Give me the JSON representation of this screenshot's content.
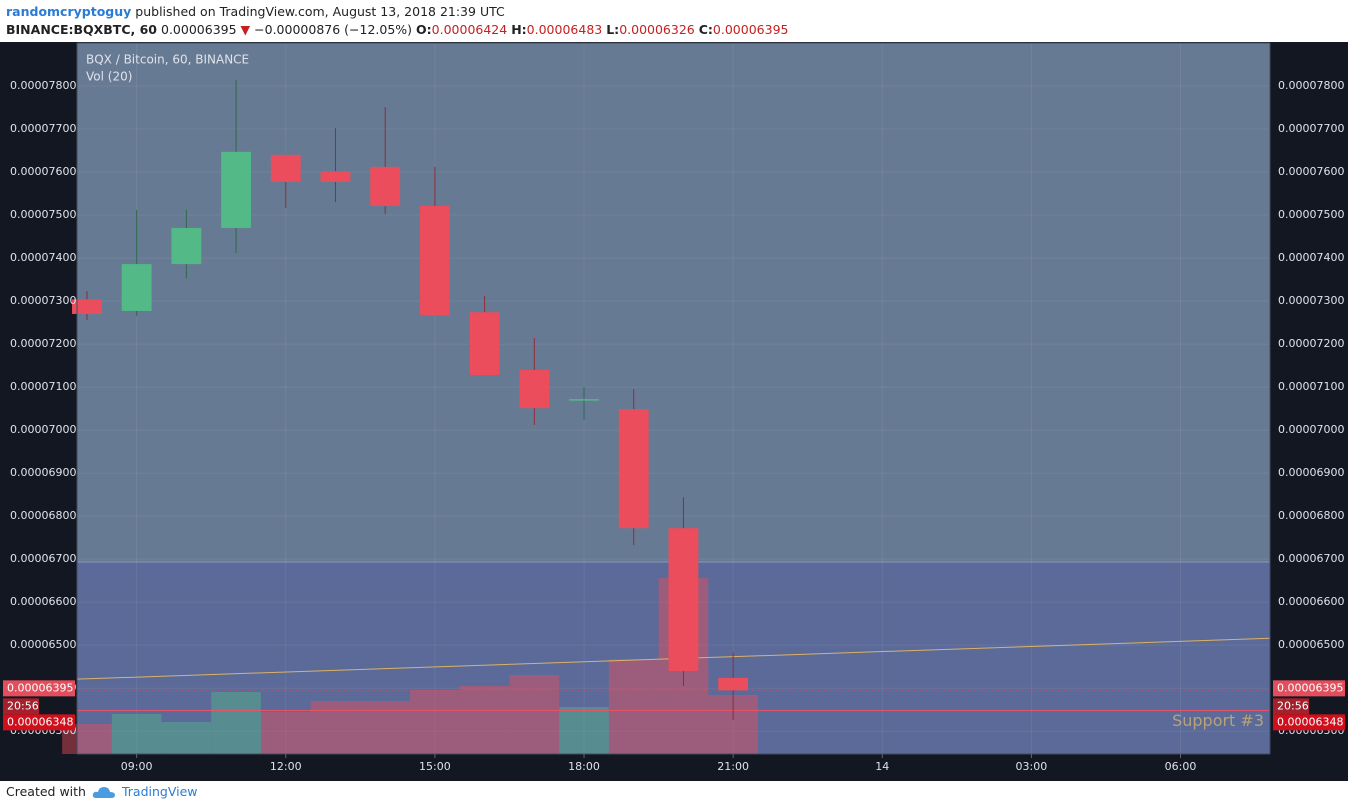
{
  "header": {
    "user": "randomcryptoguy",
    "published": "published on TradingView.com, August 13, 2018 21:39 UTC",
    "symbol": "BINANCE:BQXBTC, 60",
    "last": "0.00006395",
    "arrow": "▼",
    "change": "−0.00000876 (−12.05%)",
    "o_label": "O:",
    "o": "0.00006424",
    "h_label": "H:",
    "h": "0.00006483",
    "l_label": "L:",
    "l": "0.00006326",
    "c_label": "C:",
    "c": "0.00006395"
  },
  "footer": {
    "created": "Created with",
    "brand": "TradingView"
  },
  "chart_data": {
    "type": "candlestick",
    "title": "BQX / Bitcoin, 60, BINANCE",
    "volume_title": "Vol (20)",
    "x": [
      8,
      9,
      10,
      11,
      12,
      13,
      14,
      15,
      16,
      17,
      18,
      19,
      20,
      21
    ],
    "open": [
      7.304e-05,
      7.277e-05,
      7.386e-05,
      7.47e-05,
      7.64e-05,
      7.602e-05,
      7.612e-05,
      7.521e-05,
      7.274e-05,
      7.14e-05,
      7.072e-05,
      7.049e-05,
      6.772e-05,
      6.424e-05
    ],
    "high": [
      7.323e-05,
      7.512e-05,
      7.512e-05,
      7.814e-05,
      7.64e-05,
      7.702e-05,
      7.751e-05,
      7.612e-05,
      7.312e-05,
      7.214e-05,
      7.1e-05,
      7.095e-05,
      6.844e-05,
      6.483e-05
    ],
    "low": [
      7.256e-05,
      7.265e-05,
      7.353e-05,
      7.412e-05,
      7.516e-05,
      7.53e-05,
      7.502e-05,
      7.267e-05,
      7.128e-05,
      7.012e-05,
      7.023e-05,
      6.733e-05,
      6.405e-05,
      6.326e-05
    ],
    "close": [
      7.27e-05,
      7.386e-05,
      7.47e-05,
      7.647e-05,
      7.577e-05,
      7.577e-05,
      7.521e-05,
      7.267e-05,
      7.128e-05,
      7.051e-05,
      7.072e-05,
      6.772e-05,
      6.44e-05,
      6.395e-05
    ],
    "volume": [
      30,
      40,
      32,
      62,
      42,
      53,
      53,
      64,
      68,
      79,
      47,
      95,
      176,
      59
    ],
    "up_color": "#53b987",
    "down_color": "#eb4d5c",
    "xlim": [
      7.8,
      31.8
    ],
    "xticks": [
      {
        "value": 9,
        "label": "09:00"
      },
      {
        "value": 12,
        "label": "12:00"
      },
      {
        "value": 15,
        "label": "15:00"
      },
      {
        "value": 18,
        "label": "18:00"
      },
      {
        "value": 21,
        "label": "21:00"
      },
      {
        "value": 24,
        "label": "14"
      },
      {
        "value": 27,
        "label": "03:00"
      },
      {
        "value": 30,
        "label": "06:00"
      }
    ],
    "ylim": [
      6.247e-05,
      7.9e-05
    ],
    "yticks": [
      {
        "value": 6.3e-05,
        "label": "0.00006300"
      },
      {
        "value": 6.4e-05,
        "label": "0.00006400"
      },
      {
        "value": 6.5e-05,
        "label": "0.00006500"
      },
      {
        "value": 6.6e-05,
        "label": "0.00006600"
      },
      {
        "value": 6.7e-05,
        "label": "0.00006700"
      },
      {
        "value": 6.8e-05,
        "label": "0.00006800"
      },
      {
        "value": 6.9e-05,
        "label": "0.00006900"
      },
      {
        "value": 7e-05,
        "label": "0.00007000"
      },
      {
        "value": 7.1e-05,
        "label": "0.00007100"
      },
      {
        "value": 7.2e-05,
        "label": "0.00007200"
      },
      {
        "value": 7.3e-05,
        "label": "0.00007300"
      },
      {
        "value": 7.4e-05,
        "label": "0.00007400"
      },
      {
        "value": 7.5e-05,
        "label": "0.00007500"
      },
      {
        "value": 7.6e-05,
        "label": "0.00007600"
      },
      {
        "value": 7.7e-05,
        "label": "0.00007700"
      },
      {
        "value": 7.8e-05,
        "label": "0.00007800"
      }
    ],
    "volume_lim": [
      0,
      711
    ],
    "grid": true,
    "trend_line": {
      "x": [
        7.8,
        31.8
      ],
      "values": [
        6.421e-05,
        6.516e-05
      ],
      "color": "#d9b36a"
    },
    "last_price": {
      "value": 6.395e-05,
      "label": "0.00006395"
    },
    "countdown": "20:56",
    "support": {
      "value": 6.348e-05,
      "label": "0.00006348",
      "name": "Support #3"
    }
  }
}
